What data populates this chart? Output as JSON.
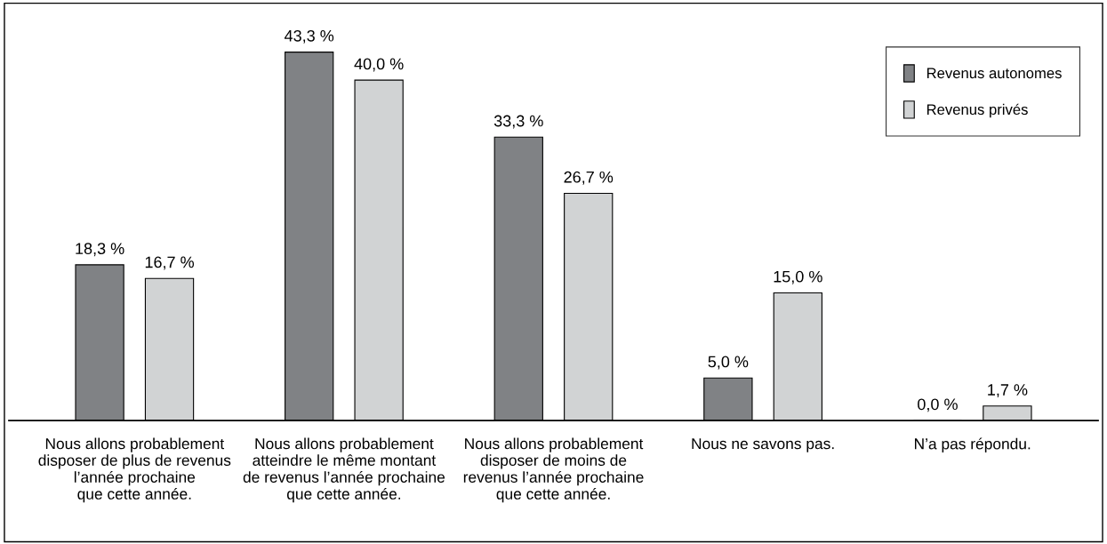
{
  "chart_data": {
    "type": "bar",
    "categories": [
      "Nous allons probablement\ndisposer de plus de revenus\nl’année prochaine\nque cette année.",
      "Nous allons probablement\natteindre le même montant\nde revenus l’année prochaine\nque cette année.",
      "Nous allons probablement\ndisposer de moins de\nrevenus l’année prochaine\nque cette année.",
      "Nous ne savons pas.",
      "N’a pas répondu."
    ],
    "series": [
      {
        "name": "Revenus autonomes",
        "color": "#808285",
        "values": [
          18.3,
          43.3,
          33.3,
          5.0,
          0.0
        ],
        "value_labels": [
          "18,3 %",
          "43,3 %",
          "33,3 %",
          "5,0 %",
          "0,0 %"
        ]
      },
      {
        "name": "Revenus privés",
        "color": "#d1d3d4",
        "values": [
          16.7,
          40.0,
          26.7,
          15.0,
          1.7
        ],
        "value_labels": [
          "16,7 %",
          "40,0 %",
          "26,7 %",
          "15,0 %",
          "1,7 %"
        ]
      }
    ],
    "legend": "top right",
    "grid": false
  }
}
